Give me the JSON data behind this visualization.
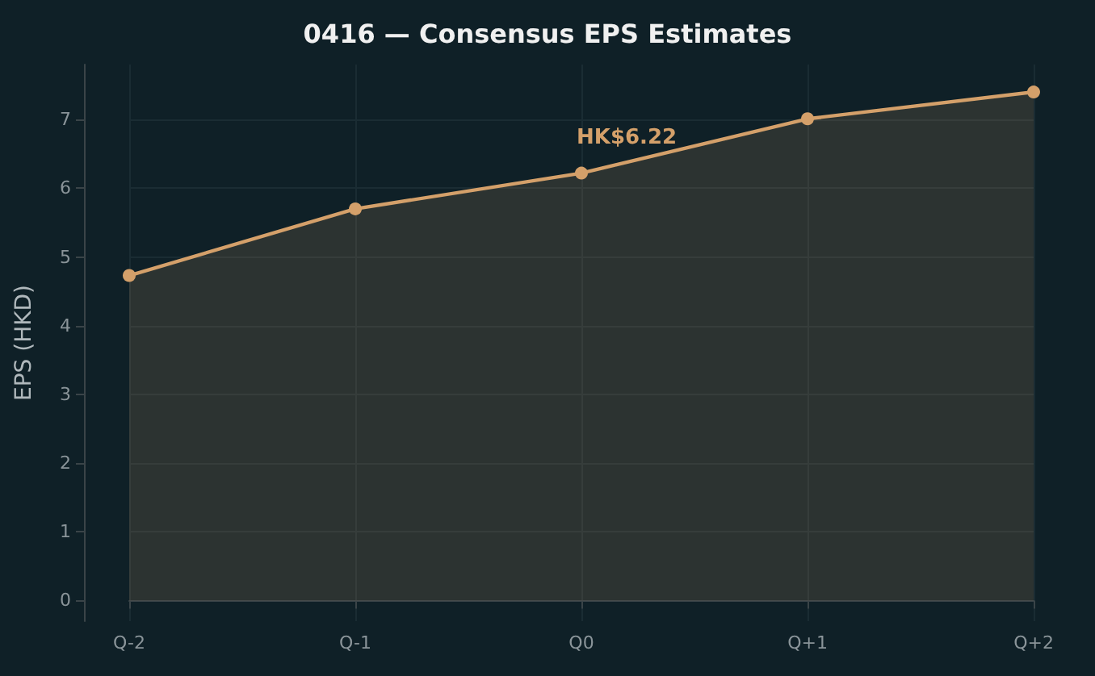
{
  "chart_data": {
    "type": "area",
    "title": "0416 — Consensus EPS Estimates",
    "ylabel": "EPS (HKD)",
    "categories": [
      "Q-2",
      "Q-1",
      "Q0",
      "Q+1",
      "Q+2"
    ],
    "series": [
      {
        "color": "#d4a06a",
        "values": [
          4.73,
          5.7,
          6.22,
          7.01,
          7.4
        ]
      }
    ],
    "annotations": [
      {
        "text": "HK$6.22",
        "x": "Q0",
        "y": 6.22
      }
    ],
    "ylim": [
      -0.3,
      7.8
    ],
    "yticks": [
      0,
      1,
      2,
      3,
      4,
      5,
      6,
      7
    ],
    "grid": true,
    "marker": "circle",
    "line_style": "solid"
  }
}
